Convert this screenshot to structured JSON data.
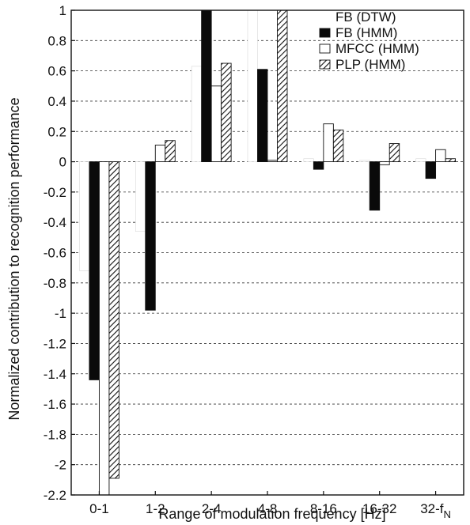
{
  "chart_data": {
    "type": "bar",
    "xlabel": "Range of modulation frequency [Hz]",
    "ylabel": "Normalized contribution to recognition performance",
    "ylim": [
      -2.2,
      1.0
    ],
    "yticks": [
      "1",
      "0.8",
      "0.6",
      "0.4",
      "0.2",
      "0",
      "-0.2",
      "-0.4",
      "-0.6",
      "-0.8",
      "-1",
      "-1.2",
      "-1.4",
      "-1.6",
      "-1.8",
      "-2",
      "-2.2"
    ],
    "categories": [
      "0-1",
      "1-2",
      "2-4",
      "4-8",
      "8-16",
      "16-32",
      "32-f"
    ],
    "last_category_subscript": "N",
    "grid": "horizontal dashed",
    "legend_position": "top-right",
    "series": [
      {
        "name": "FB (DTW)",
        "fill": "white",
        "values": [
          -0.72,
          -0.46,
          0.63,
          1.0,
          0.02,
          0.01,
          0.02
        ]
      },
      {
        "name": "FB (HMM)",
        "fill": "black",
        "values": [
          -1.44,
          -0.98,
          1.0,
          0.61,
          -0.05,
          -0.32,
          -0.11
        ]
      },
      {
        "name": "MFCC (HMM)",
        "fill": "white",
        "values": [
          -2.2,
          0.11,
          0.5,
          0.01,
          0.25,
          -0.02,
          0.08
        ]
      },
      {
        "name": "PLP (HMM)",
        "fill": "hatch",
        "values": [
          -2.09,
          0.14,
          0.65,
          1.0,
          0.21,
          0.12,
          0.02
        ]
      }
    ]
  }
}
